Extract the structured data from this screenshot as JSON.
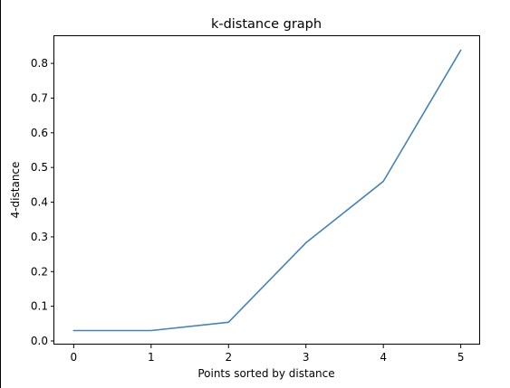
{
  "chart_data": {
    "type": "line",
    "title": "k-distance graph",
    "xlabel": "Points sorted by distance",
    "ylabel": "4-distance",
    "x": [
      0,
      1,
      2,
      3,
      4,
      5
    ],
    "series": [
      {
        "values": [
          0.03,
          0.03,
          0.054,
          0.283,
          0.46,
          0.838
        ],
        "color": "#4682b4"
      }
    ],
    "xticks": [
      "0",
      "1",
      "2",
      "3",
      "4",
      "5"
    ],
    "yticks": [
      "0.0",
      "0.1",
      "0.2",
      "0.3",
      "0.4",
      "0.5",
      "0.6",
      "0.7",
      "0.8"
    ],
    "xlim": [
      -0.25,
      5.25
    ],
    "ylim": [
      -0.0104,
      0.8784
    ],
    "grid": false,
    "legend": "none"
  }
}
